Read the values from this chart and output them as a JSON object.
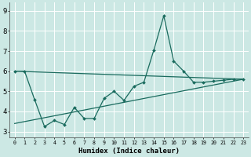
{
  "title": "",
  "xlabel": "Humidex (Indice chaleur)",
  "background_color": "#cce8e4",
  "grid_color": "#ffffff",
  "line_color": "#1a6b5e",
  "xlim": [
    -0.5,
    23.5
  ],
  "ylim": [
    2.7,
    9.4
  ],
  "xticks": [
    0,
    1,
    2,
    3,
    4,
    5,
    6,
    7,
    8,
    9,
    10,
    11,
    12,
    13,
    14,
    15,
    16,
    17,
    18,
    19,
    20,
    21,
    22,
    23
  ],
  "yticks": [
    3,
    4,
    5,
    6,
    7,
    8,
    9
  ],
  "line1_x": [
    0,
    1,
    2,
    3,
    4,
    5,
    6,
    7,
    8,
    9,
    10,
    11,
    12,
    13,
    14,
    15,
    16,
    17,
    18,
    19,
    20,
    21,
    22,
    23
  ],
  "line1_y": [
    6.0,
    6.0,
    4.6,
    3.25,
    3.55,
    3.35,
    4.2,
    3.65,
    3.65,
    4.65,
    5.0,
    4.55,
    5.25,
    5.45,
    7.05,
    8.75,
    6.5,
    6.0,
    5.45,
    5.45,
    5.5,
    5.55,
    5.6,
    5.6
  ],
  "line2_x": [
    0,
    23
  ],
  "line2_y": [
    3.4,
    5.6
  ],
  "line3_x": [
    0,
    23
  ],
  "line3_y": [
    6.0,
    5.6
  ]
}
